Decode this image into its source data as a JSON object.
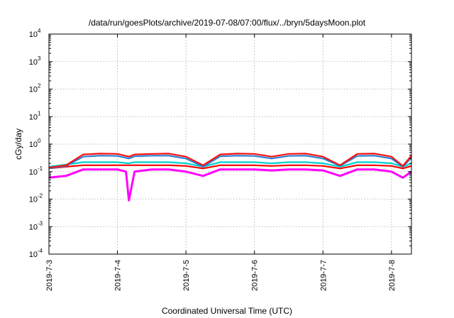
{
  "chart_data": {
    "type": "line",
    "title": "/data/run/goesPlots/archive/2019-07-08/07:00/flux/../bryn/5daysMoon.plot",
    "xlabel": "Coordinated Universal Time (UTC)",
    "ylabel": "cGy/day",
    "yscale": "log",
    "ylim": [
      0.0001,
      10000
    ],
    "xlim": [
      "2019-07-03 00:00",
      "2019-07-08 07:00"
    ],
    "grid": true,
    "y_ticks": [
      {
        "base": "10",
        "exp": "-4",
        "value": 0.0001
      },
      {
        "base": "10",
        "exp": "-3",
        "value": 0.001
      },
      {
        "base": "10",
        "exp": "-2",
        "value": 0.01
      },
      {
        "base": "10",
        "exp": "-1",
        "value": 0.1
      },
      {
        "base": "10",
        "exp": "0",
        "value": 1
      },
      {
        "base": "10",
        "exp": "1",
        "value": 10
      },
      {
        "base": "10",
        "exp": "2",
        "value": 100
      },
      {
        "base": "10",
        "exp": "3",
        "value": 1000
      },
      {
        "base": "10",
        "exp": "4",
        "value": 10000
      }
    ],
    "x_ticks": [
      {
        "label": "2019-7-3",
        "date": "2019-07-03 00:00"
      },
      {
        "label": "2019-7-4",
        "date": "2019-07-04 00:00"
      },
      {
        "label": "2019-7-5",
        "date": "2019-07-05 00:00"
      },
      {
        "label": "2019-7-6",
        "date": "2019-07-06 00:00"
      },
      {
        "label": "2019-7-7",
        "date": "2019-07-07 00:00"
      },
      {
        "label": "2019-7-8",
        "date": "2019-07-08 00:00"
      }
    ],
    "series": [
      {
        "color": "#ff00ff",
        "x": [
          "2019-07-03 00:00",
          "2019-07-03 06:00",
          "2019-07-03 12:00",
          "2019-07-03 18:00",
          "2019-07-04 00:00",
          "2019-07-04 03:00",
          "2019-07-04 04:00",
          "2019-07-04 06:00",
          "2019-07-04 12:00",
          "2019-07-04 18:00",
          "2019-07-05 00:00",
          "2019-07-05 06:00",
          "2019-07-05 12:00",
          "2019-07-05 18:00",
          "2019-07-06 00:00",
          "2019-07-06 06:00",
          "2019-07-06 12:00",
          "2019-07-06 18:00",
          "2019-07-07 00:00",
          "2019-07-07 06:00",
          "2019-07-07 12:00",
          "2019-07-07 18:00",
          "2019-07-08 00:00",
          "2019-07-08 04:00",
          "2019-07-08 07:00"
        ],
        "values": [
          0.06,
          0.07,
          0.12,
          0.12,
          0.12,
          0.1,
          0.009,
          0.1,
          0.12,
          0.12,
          0.1,
          0.07,
          0.12,
          0.12,
          0.12,
          0.11,
          0.12,
          0.12,
          0.11,
          0.07,
          0.12,
          0.12,
          0.1,
          0.06,
          0.1
        ]
      },
      {
        "color": "#ff0000",
        "x": [
          "2019-07-03 00:00",
          "2019-07-03 06:00",
          "2019-07-03 12:00",
          "2019-07-03 18:00",
          "2019-07-04 00:00",
          "2019-07-04 04:00",
          "2019-07-04 06:00",
          "2019-07-04 12:00",
          "2019-07-04 18:00",
          "2019-07-05 00:00",
          "2019-07-05 06:00",
          "2019-07-05 12:00",
          "2019-07-05 18:00",
          "2019-07-06 00:00",
          "2019-07-06 06:00",
          "2019-07-06 12:00",
          "2019-07-06 18:00",
          "2019-07-07 00:00",
          "2019-07-07 06:00",
          "2019-07-07 12:00",
          "2019-07-07 18:00",
          "2019-07-08 00:00",
          "2019-07-08 04:00",
          "2019-07-08 07:00"
        ],
        "values": [
          0.13,
          0.15,
          0.17,
          0.17,
          0.17,
          0.17,
          0.17,
          0.17,
          0.17,
          0.16,
          0.13,
          0.17,
          0.17,
          0.17,
          0.16,
          0.17,
          0.17,
          0.16,
          0.13,
          0.17,
          0.17,
          0.16,
          0.13,
          0.16
        ]
      },
      {
        "color": "#00d0d0",
        "x": [
          "2019-07-03 00:00",
          "2019-07-03 06:00",
          "2019-07-03 12:00",
          "2019-07-03 18:00",
          "2019-07-04 00:00",
          "2019-07-04 04:00",
          "2019-07-04 06:00",
          "2019-07-04 12:00",
          "2019-07-04 18:00",
          "2019-07-05 00:00",
          "2019-07-05 06:00",
          "2019-07-05 12:00",
          "2019-07-05 18:00",
          "2019-07-06 00:00",
          "2019-07-06 06:00",
          "2019-07-06 12:00",
          "2019-07-06 18:00",
          "2019-07-07 00:00",
          "2019-07-07 06:00",
          "2019-07-07 12:00",
          "2019-07-07 18:00",
          "2019-07-08 00:00",
          "2019-07-08 04:00",
          "2019-07-08 07:00"
        ],
        "values": [
          0.15,
          0.18,
          0.22,
          0.22,
          0.22,
          0.2,
          0.22,
          0.22,
          0.22,
          0.2,
          0.15,
          0.22,
          0.22,
          0.22,
          0.2,
          0.22,
          0.22,
          0.2,
          0.15,
          0.22,
          0.22,
          0.2,
          0.15,
          0.2
        ]
      },
      {
        "color": "#2a7fd4",
        "x": [
          "2019-07-03 00:00",
          "2019-07-03 06:00",
          "2019-07-03 12:00",
          "2019-07-03 18:00",
          "2019-07-04 00:00",
          "2019-07-04 04:00",
          "2019-07-04 06:00",
          "2019-07-04 12:00",
          "2019-07-04 18:00",
          "2019-07-05 00:00",
          "2019-07-05 06:00",
          "2019-07-05 12:00",
          "2019-07-05 18:00",
          "2019-07-06 00:00",
          "2019-07-06 06:00",
          "2019-07-06 12:00",
          "2019-07-06 18:00",
          "2019-07-07 00:00",
          "2019-07-07 06:00",
          "2019-07-07 12:00",
          "2019-07-07 18:00",
          "2019-07-08 00:00",
          "2019-07-08 04:00",
          "2019-07-08 07:00"
        ],
        "values": [
          0.13,
          0.16,
          0.35,
          0.38,
          0.37,
          0.3,
          0.36,
          0.38,
          0.38,
          0.3,
          0.15,
          0.36,
          0.38,
          0.37,
          0.3,
          0.37,
          0.38,
          0.3,
          0.16,
          0.37,
          0.38,
          0.3,
          0.15,
          0.32
        ]
      },
      {
        "color": "#ff1010",
        "x": [
          "2019-07-03 00:00",
          "2019-07-03 06:00",
          "2019-07-03 12:00",
          "2019-07-03 18:00",
          "2019-07-04 00:00",
          "2019-07-04 04:00",
          "2019-07-04 06:00",
          "2019-07-04 12:00",
          "2019-07-04 18:00",
          "2019-07-05 00:00",
          "2019-07-05 06:00",
          "2019-07-05 12:00",
          "2019-07-05 18:00",
          "2019-07-06 00:00",
          "2019-07-06 06:00",
          "2019-07-06 12:00",
          "2019-07-06 18:00",
          "2019-07-07 00:00",
          "2019-07-07 06:00",
          "2019-07-07 12:00",
          "2019-07-07 18:00",
          "2019-07-08 00:00",
          "2019-07-08 04:00",
          "2019-07-08 07:00"
        ],
        "values": [
          0.14,
          0.17,
          0.42,
          0.45,
          0.44,
          0.35,
          0.42,
          0.44,
          0.45,
          0.35,
          0.17,
          0.42,
          0.45,
          0.44,
          0.35,
          0.44,
          0.45,
          0.35,
          0.17,
          0.44,
          0.45,
          0.35,
          0.16,
          0.38
        ]
      }
    ]
  }
}
